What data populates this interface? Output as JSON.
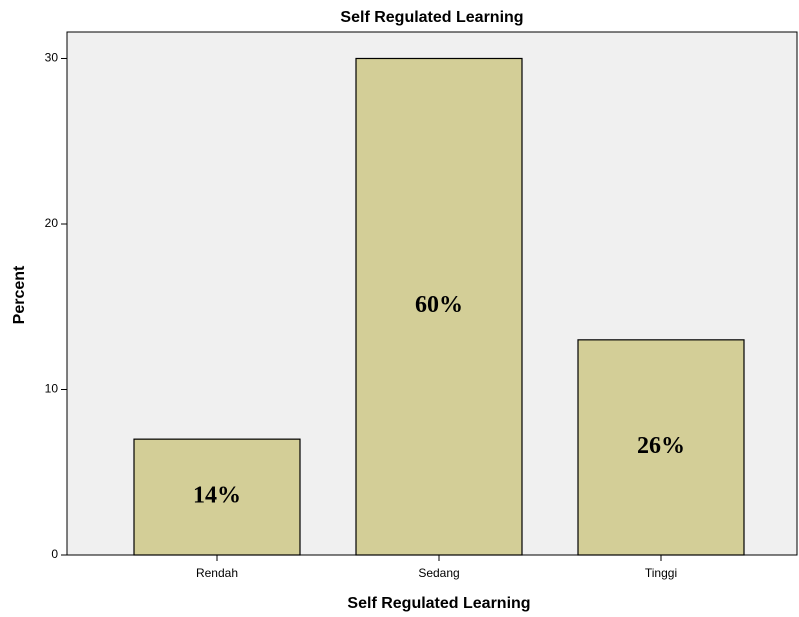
{
  "chart_data": {
    "type": "bar",
    "title": "Self Regulated Learning",
    "x_label": "Self Regulated Learning",
    "y_label": "Percent",
    "categories": [
      "Rendah",
      "Sedang",
      "Tinggi"
    ],
    "values": [
      7,
      30,
      13
    ],
    "color": "#d3ce97",
    "annotations": [
      "14%",
      "60%",
      "26%"
    ],
    "ylim": [
      0,
      31.6
    ],
    "yticks": [
      0,
      10,
      20,
      30
    ],
    "grid": false
  }
}
